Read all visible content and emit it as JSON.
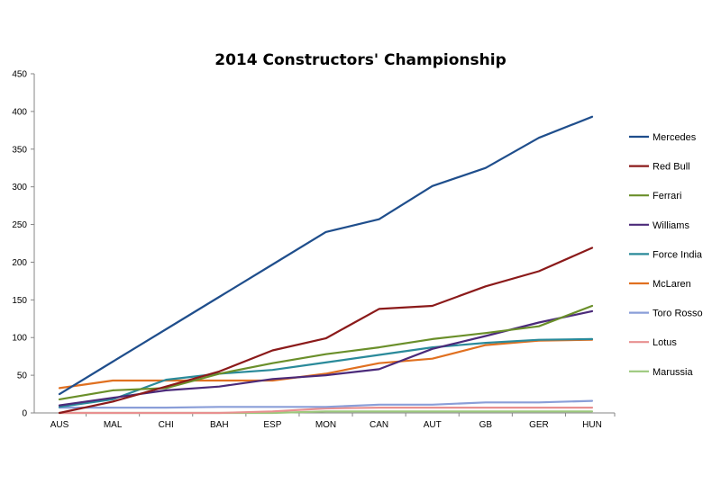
{
  "chart_data": {
    "type": "line",
    "title": "2014 Constructors' Championship",
    "xlabel": "",
    "ylabel": "",
    "categories": [
      "AUS",
      "MAL",
      "CHI",
      "BAH",
      "ESP",
      "MON",
      "CAN",
      "AUT",
      "GB",
      "GER",
      "HUN"
    ],
    "ylim": [
      0,
      450
    ],
    "yticks": [
      "0",
      "50",
      "100",
      "150",
      "200",
      "250",
      "300",
      "350",
      "400",
      "450"
    ],
    "grid": "horizontal-axis-only",
    "legend_position": "right",
    "series": [
      {
        "name": "Mercedes",
        "color": "#1f4e8c",
        "values": [
          25,
          68,
          111,
          154,
          197,
          240,
          257,
          301,
          325,
          365,
          393
        ]
      },
      {
        "name": "Red Bull",
        "color": "#8b1a1a",
        "values": [
          0,
          15,
          35,
          55,
          83,
          99,
          138,
          142,
          168,
          188,
          219
        ]
      },
      {
        "name": "Ferrari",
        "color": "#6a8f2a",
        "values": [
          18,
          30,
          33,
          52,
          66,
          78,
          87,
          98,
          106,
          115,
          142
        ]
      },
      {
        "name": "Williams",
        "color": "#4b2a7a",
        "values": [
          10,
          20,
          30,
          35,
          45,
          50,
          58,
          85,
          102,
          120,
          135
        ]
      },
      {
        "name": "Force India",
        "color": "#2a8a9a",
        "values": [
          8,
          18,
          44,
          52,
          57,
          67,
          77,
          87,
          93,
          97,
          98
        ]
      },
      {
        "name": "McLaren",
        "color": "#e07020",
        "values": [
          33,
          43,
          43,
          43,
          43,
          52,
          66,
          72,
          90,
          96,
          97
        ]
      },
      {
        "name": "Toro Rosso",
        "color": "#8a9ed8",
        "values": [
          7,
          7,
          7,
          8,
          8,
          8,
          11,
          11,
          14,
          14,
          16
        ]
      },
      {
        "name": "Lotus",
        "color": "#e89090",
        "values": [
          0,
          0,
          0,
          0,
          2,
          6,
          7,
          7,
          7,
          7,
          7
        ]
      },
      {
        "name": "Marussia",
        "color": "#9cc87c",
        "values": [
          0,
          0,
          0,
          0,
          0,
          2,
          2,
          2,
          2,
          2,
          2
        ]
      }
    ]
  }
}
